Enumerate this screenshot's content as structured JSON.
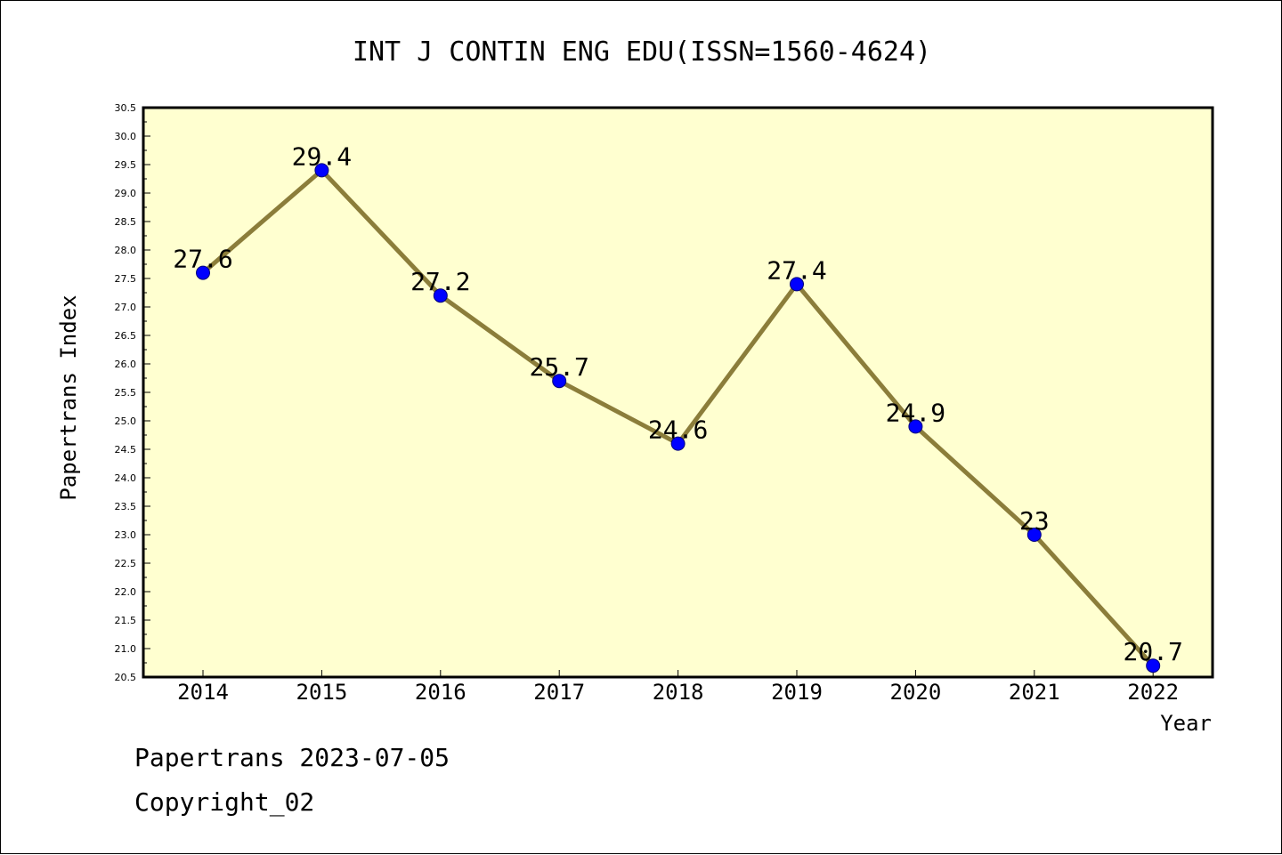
{
  "chart_data": {
    "type": "line",
    "title": "INT J CONTIN ENG EDU(ISSN=1560-4624)",
    "xlabel": "Year",
    "ylabel": "Papertrans Index",
    "categories": [
      "2014",
      "2015",
      "2016",
      "2017",
      "2018",
      "2019",
      "2020",
      "2021",
      "2022"
    ],
    "values": [
      27.6,
      29.4,
      27.2,
      25.7,
      24.6,
      27.4,
      24.9,
      23,
      20.7
    ],
    "data_labels": [
      "27.6",
      "29.4",
      "27.2",
      "25.7",
      "24.6",
      "27.4",
      "24.9",
      "23",
      "20.7"
    ],
    "ylim": [
      20.5,
      30.5
    ],
    "yticks": [
      "20.5",
      "21.0",
      "21.5",
      "22.0",
      "22.5",
      "23.0",
      "23.5",
      "24.0",
      "24.5",
      "25.0",
      "25.5",
      "26.0",
      "26.5",
      "27.0",
      "27.5",
      "28.0",
      "28.5",
      "29.0",
      "29.5",
      "30.0",
      "30.5"
    ],
    "grid": false,
    "legend": "none",
    "colors": {
      "plot_background": "#ffffd0",
      "line": "#8b7d3a",
      "marker": "#0000ff",
      "axis": "#000000"
    }
  },
  "footer": {
    "line1": "Papertrans 2023-07-05",
    "line2": "Copyright_02"
  }
}
